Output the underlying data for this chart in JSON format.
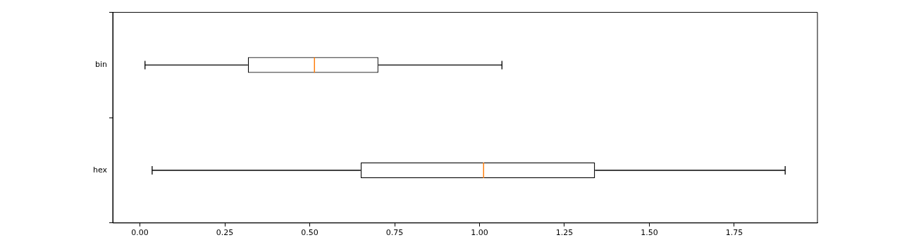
{
  "chart_data": {
    "type": "box",
    "orientation": "horizontal",
    "categories": [
      "bin",
      "hex"
    ],
    "boxes": [
      {
        "low": 0.015,
        "q1": 0.318,
        "median": 0.514,
        "q3": 0.702,
        "high": 1.066
      },
      {
        "low": 0.036,
        "q1": 0.65,
        "median": 1.012,
        "q3": 1.34,
        "high": 1.9
      }
    ],
    "xlim": [
      -0.08,
      1.995
    ],
    "xticks": [
      {
        "value": 0,
        "label": "0.00"
      },
      {
        "value": 0.25,
        "label": "0.25"
      },
      {
        "value": 0.5,
        "label": "0.50"
      },
      {
        "value": 0.75,
        "label": "0.75"
      },
      {
        "value": 1,
        "label": "1.00"
      },
      {
        "value": 1.25,
        "label": "1.25"
      },
      {
        "value": 1.5,
        "label": "1.50"
      },
      {
        "value": 1.75,
        "label": "1.75"
      }
    ],
    "grid": false,
    "legend": false
  }
}
